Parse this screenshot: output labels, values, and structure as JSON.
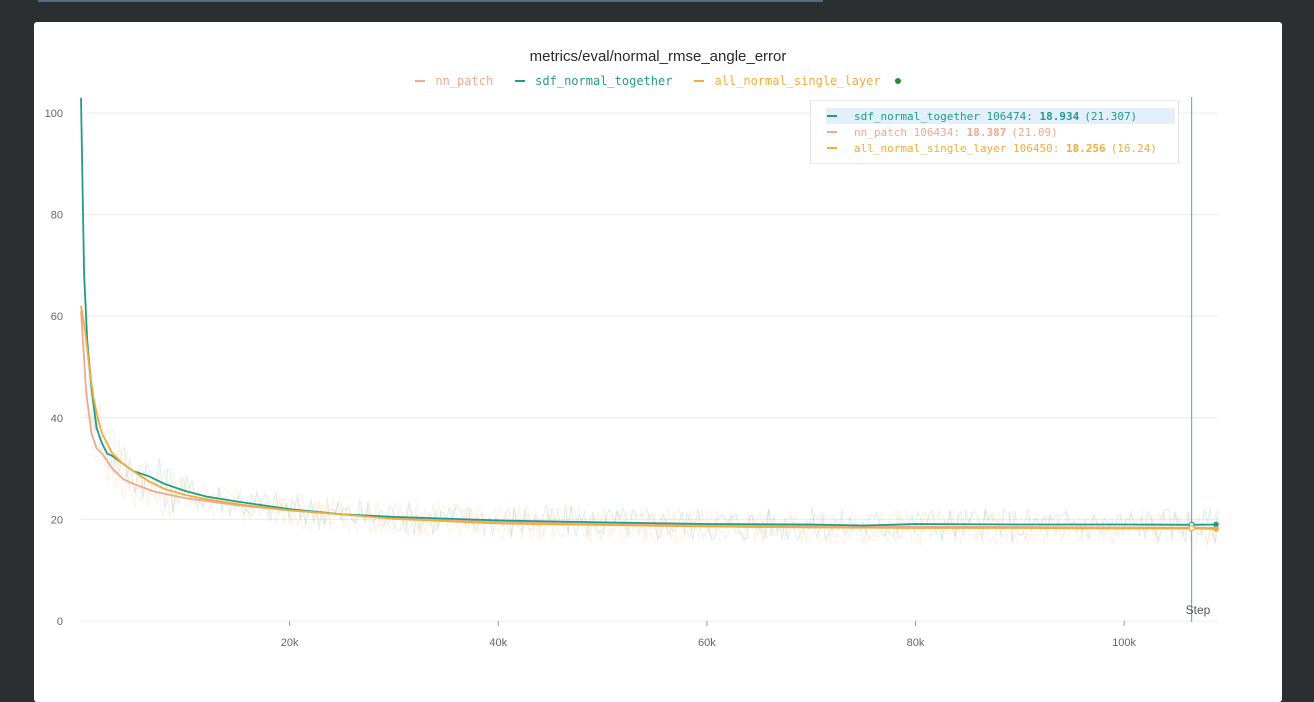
{
  "panel_title": "metrics/eval/normal_rmse_angle_error",
  "colors": {
    "nn_patch": "#efa98e",
    "sdf_normal_together": "#229c8a",
    "all_normal_single_layer": "#f0ad3a",
    "legend_active_dot": "#2d8a3a",
    "grid": "#ececec",
    "cursor": "#5a9bd5"
  },
  "legend": [
    {
      "label": "nn_patch",
      "color": "#efa98e"
    },
    {
      "label": "sdf_normal_together",
      "color": "#229c8a"
    },
    {
      "label": "all_normal_single_layer",
      "color": "#f0ad3a"
    }
  ],
  "tooltip": {
    "rows": [
      {
        "name": "sdf_normal_together",
        "step": "106474:",
        "value": "18.934",
        "raw": "(21.307)",
        "color": "#229c8a",
        "highlighted": true
      },
      {
        "name": "nn_patch",
        "step": "106434:",
        "value": "18.387",
        "raw": "(21.09)",
        "color": "#efa98e",
        "highlighted": false
      },
      {
        "name": "all_normal_single_layer",
        "step": "106450:",
        "value": "18.256",
        "raw": "(16.24)",
        "color": "#f0ad3a",
        "highlighted": false
      }
    ]
  },
  "chart_data": {
    "type": "line",
    "title": "metrics/eval/normal_rmse_angle_error",
    "xlabel": "Step",
    "ylabel": "",
    "xlim": [
      0,
      109000
    ],
    "ylim": [
      0,
      100
    ],
    "x_ticks": [
      20000,
      40000,
      60000,
      80000,
      100000
    ],
    "x_tick_labels": [
      "20k",
      "40k",
      "60k",
      "80k",
      "100k"
    ],
    "y_ticks": [
      0,
      20,
      40,
      60,
      80,
      100
    ],
    "y_tick_labels": [
      "0",
      "20",
      "40",
      "60",
      "80",
      "100"
    ],
    "grid": true,
    "legend_position": "top-center",
    "cursor_x": 106474,
    "series": [
      {
        "name": "nn_patch",
        "color": "#efa98e",
        "x": [
          0,
          500,
          1000,
          1500,
          2000,
          3000,
          4000,
          5000,
          7000,
          10000,
          15000,
          20000,
          30000,
          40000,
          50000,
          60000,
          70000,
          80000,
          90000,
          100000,
          106434,
          109000
        ],
        "y": [
          61,
          45,
          37,
          34,
          33,
          30,
          28,
          27,
          25.5,
          24.2,
          22.8,
          21.8,
          20.2,
          19.5,
          19.1,
          18.8,
          18.7,
          18.6,
          18.5,
          18.4,
          18.387,
          18.3
        ]
      },
      {
        "name": "sdf_normal_together",
        "color": "#229c8a",
        "x": [
          0,
          300,
          600,
          1000,
          1500,
          2000,
          2500,
          3000,
          4000,
          5000,
          6500,
          8000,
          10000,
          12000,
          15000,
          20000,
          25000,
          30000,
          40000,
          50000,
          60000,
          70000,
          75000,
          80000,
          90000,
          100000,
          106474,
          109000
        ],
        "y": [
          103,
          68,
          55,
          46,
          38,
          35,
          33,
          32.5,
          31,
          29.5,
          28.5,
          27,
          25.6,
          24.5,
          23.5,
          22,
          21,
          20.5,
          19.8,
          19.4,
          19.1,
          19.0,
          18.8,
          19.1,
          19.0,
          19.0,
          18.934,
          19.0
        ]
      },
      {
        "name": "all_normal_single_layer",
        "color": "#f0ad3a",
        "x": [
          0,
          400,
          800,
          1200,
          1600,
          2000,
          2500,
          3000,
          4000,
          5000,
          6500,
          8000,
          10000,
          12000,
          15000,
          20000,
          25000,
          30000,
          40000,
          50000,
          60000,
          70000,
          80000,
          90000,
          100000,
          106450,
          109000
        ],
        "y": [
          62,
          57,
          50,
          44,
          40,
          37,
          35,
          33,
          31,
          29.5,
          27.5,
          26,
          24.8,
          24,
          23,
          21.8,
          21,
          20.1,
          19.2,
          18.9,
          18.6,
          18.4,
          18.3,
          18.3,
          18.2,
          18.256,
          18.1
        ]
      }
    ]
  }
}
